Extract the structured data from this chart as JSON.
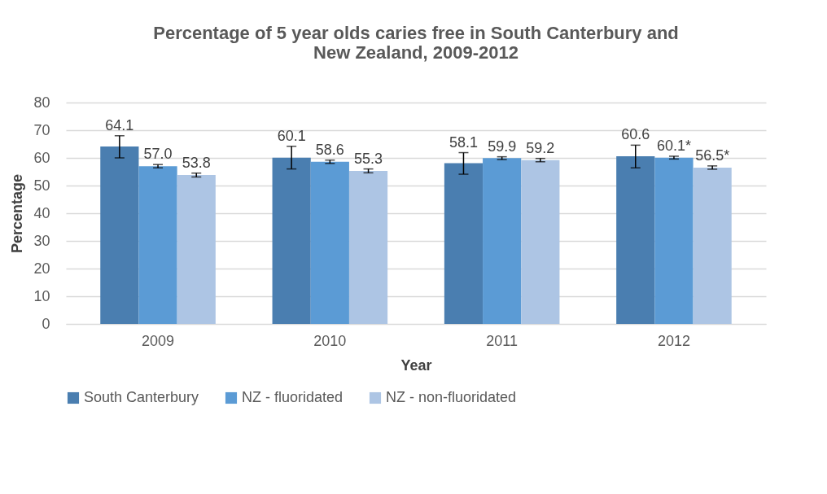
{
  "chart_data": {
    "type": "bar",
    "title": "Percentage of 5 year olds caries free in South Canterbury and New Zealand, 2009-2012",
    "xlabel": "Year",
    "ylabel": "Percentage",
    "categories": [
      "2009",
      "2010",
      "2011",
      "2012"
    ],
    "ylim": [
      0,
      80
    ],
    "yticks": [
      0,
      10,
      20,
      30,
      40,
      50,
      60,
      70,
      80
    ],
    "grid": "y",
    "legend": "bottom",
    "series": [
      {
        "name": "South Canterbury",
        "color": "#4a7eb0",
        "values": [
          64.1,
          60.1,
          58.1,
          60.6
        ],
        "errors": [
          [
            60,
            68
          ],
          [
            56,
            64.2
          ],
          [
            54.1,
            61.9
          ],
          [
            56.4,
            64.6
          ]
        ],
        "value_labels": [
          "64.1",
          "60.1",
          "58.1",
          "60.6"
        ]
      },
      {
        "name": "NZ - fluoridated",
        "color": "#5b9bd5",
        "values": [
          57.0,
          58.6,
          59.9,
          60.1
        ],
        "errors": [
          0.6,
          0.6,
          0.5,
          0.5
        ],
        "value_labels": [
          "57.0",
          "58.6",
          "59.9",
          "60.1*"
        ]
      },
      {
        "name": "NZ - non-fluoridated",
        "color": "#adc5e4",
        "values": [
          53.8,
          55.3,
          59.2,
          56.5
        ],
        "errors": [
          0.7,
          0.7,
          0.6,
          0.6
        ],
        "value_labels": [
          "53.8",
          "55.3",
          "59.2",
          "56.5*"
        ]
      }
    ]
  }
}
